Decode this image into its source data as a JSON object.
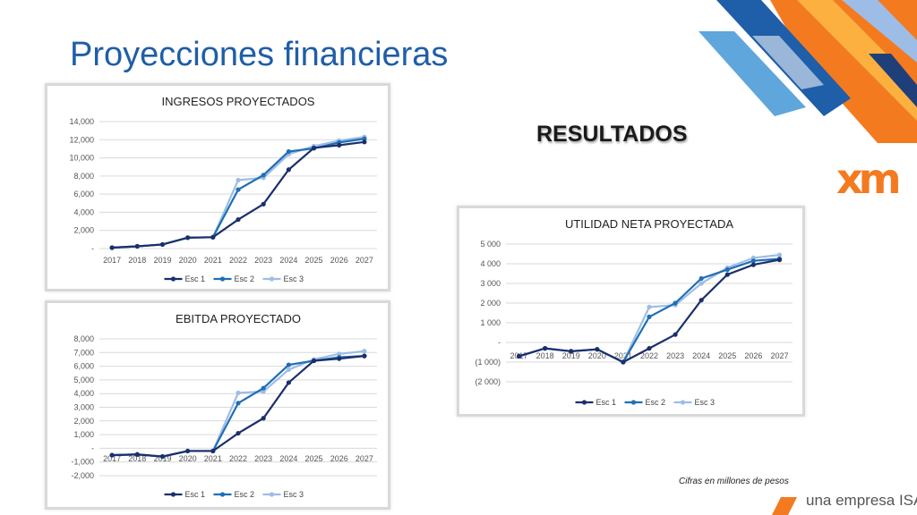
{
  "page": {
    "title": "Proyecciones financieras",
    "section": "RESULTADOS",
    "note": "Cifras en millones de pesos",
    "footer": "una empresa ISA",
    "logo": "xm"
  },
  "colors": {
    "title": "#1f5ea8",
    "esc1": "#1b2f6b",
    "esc2": "#1f6fb5",
    "esc3": "#9dbde6",
    "logo": "#f47a20",
    "grid": "#d9d9d9"
  },
  "chart_data": [
    {
      "id": "ingresos",
      "type": "line",
      "title": "INGRESOS PROYECTADOS",
      "x": [
        "2017",
        "2018",
        "2019",
        "2020",
        "2021",
        "2022",
        "2023",
        "2024",
        "2025",
        "2026",
        "2027"
      ],
      "yticks": [
        "-",
        "2,000",
        "4,000",
        "6,000",
        "8,000",
        "10,000",
        "12,000",
        "14,000"
      ],
      "ylim": [
        0,
        14000
      ],
      "ystep": 2000,
      "legend_position": "bottom",
      "series": [
        {
          "name": "Esc 1",
          "values": [
            100,
            250,
            450,
            1200,
            1250,
            3200,
            4900,
            8700,
            11100,
            11400,
            11750
          ]
        },
        {
          "name": "Esc 2",
          "values": [
            100,
            250,
            450,
            1200,
            1250,
            6500,
            8100,
            10700,
            11050,
            11700,
            12100
          ]
        },
        {
          "name": "Esc 3",
          "values": [
            100,
            250,
            450,
            1200,
            1250,
            7550,
            7800,
            10400,
            11300,
            11900,
            12300
          ]
        }
      ]
    },
    {
      "id": "ebitda",
      "type": "line",
      "title": "EBITDA PROYECTADO",
      "x": [
        "2017",
        "2018",
        "2019",
        "2020",
        "2021",
        "2022",
        "2023",
        "2024",
        "2025",
        "2026",
        "2027"
      ],
      "yticks": [
        "-2,000",
        "-1,000",
        "-",
        "1,000",
        "2,000",
        "3,000",
        "4,000",
        "5,000",
        "6,000",
        "7,000",
        "8,000"
      ],
      "ylim": [
        -2000,
        8000
      ],
      "ystep": 1000,
      "legend_position": "bottom",
      "series": [
        {
          "name": "Esc 1",
          "values": [
            -500,
            -450,
            -600,
            -200,
            -200,
            1100,
            2200,
            4800,
            6400,
            6550,
            6750
          ]
        },
        {
          "name": "Esc 2",
          "values": [
            -500,
            -450,
            -600,
            -200,
            -200,
            3300,
            4400,
            6100,
            6400,
            6650,
            6750
          ]
        },
        {
          "name": "Esc 3",
          "values": [
            -500,
            -450,
            -600,
            -200,
            -200,
            4050,
            4150,
            5750,
            6500,
            6900,
            7100
          ]
        }
      ]
    },
    {
      "id": "utilidad",
      "type": "line",
      "title": "UTILIDAD NETA PROYECTADA",
      "x": [
        "2017",
        "2018",
        "2019",
        "2020",
        "2021",
        "2022",
        "2023",
        "2024",
        "2025",
        "2026",
        "2027"
      ],
      "yticks": [
        "(2 000)",
        "(1 000)",
        "-",
        "1 000",
        "2 000",
        "3 000",
        "4 000",
        "5 000"
      ],
      "ylim": [
        -2000,
        5000
      ],
      "ystep": 1000,
      "legend_position": "bottom",
      "series": [
        {
          "name": "Esc 1",
          "values": [
            -700,
            -300,
            -450,
            -350,
            -1000,
            -300,
            400,
            2150,
            3450,
            3950,
            4200
          ]
        },
        {
          "name": "Esc 2",
          "values": [
            -700,
            -300,
            -450,
            -350,
            -1000,
            1300,
            2000,
            3250,
            3700,
            4150,
            4250
          ]
        },
        {
          "name": "Esc 3",
          "values": [
            -700,
            -300,
            -450,
            -350,
            -1000,
            1800,
            1900,
            3000,
            3800,
            4300,
            4450
          ]
        }
      ]
    }
  ]
}
